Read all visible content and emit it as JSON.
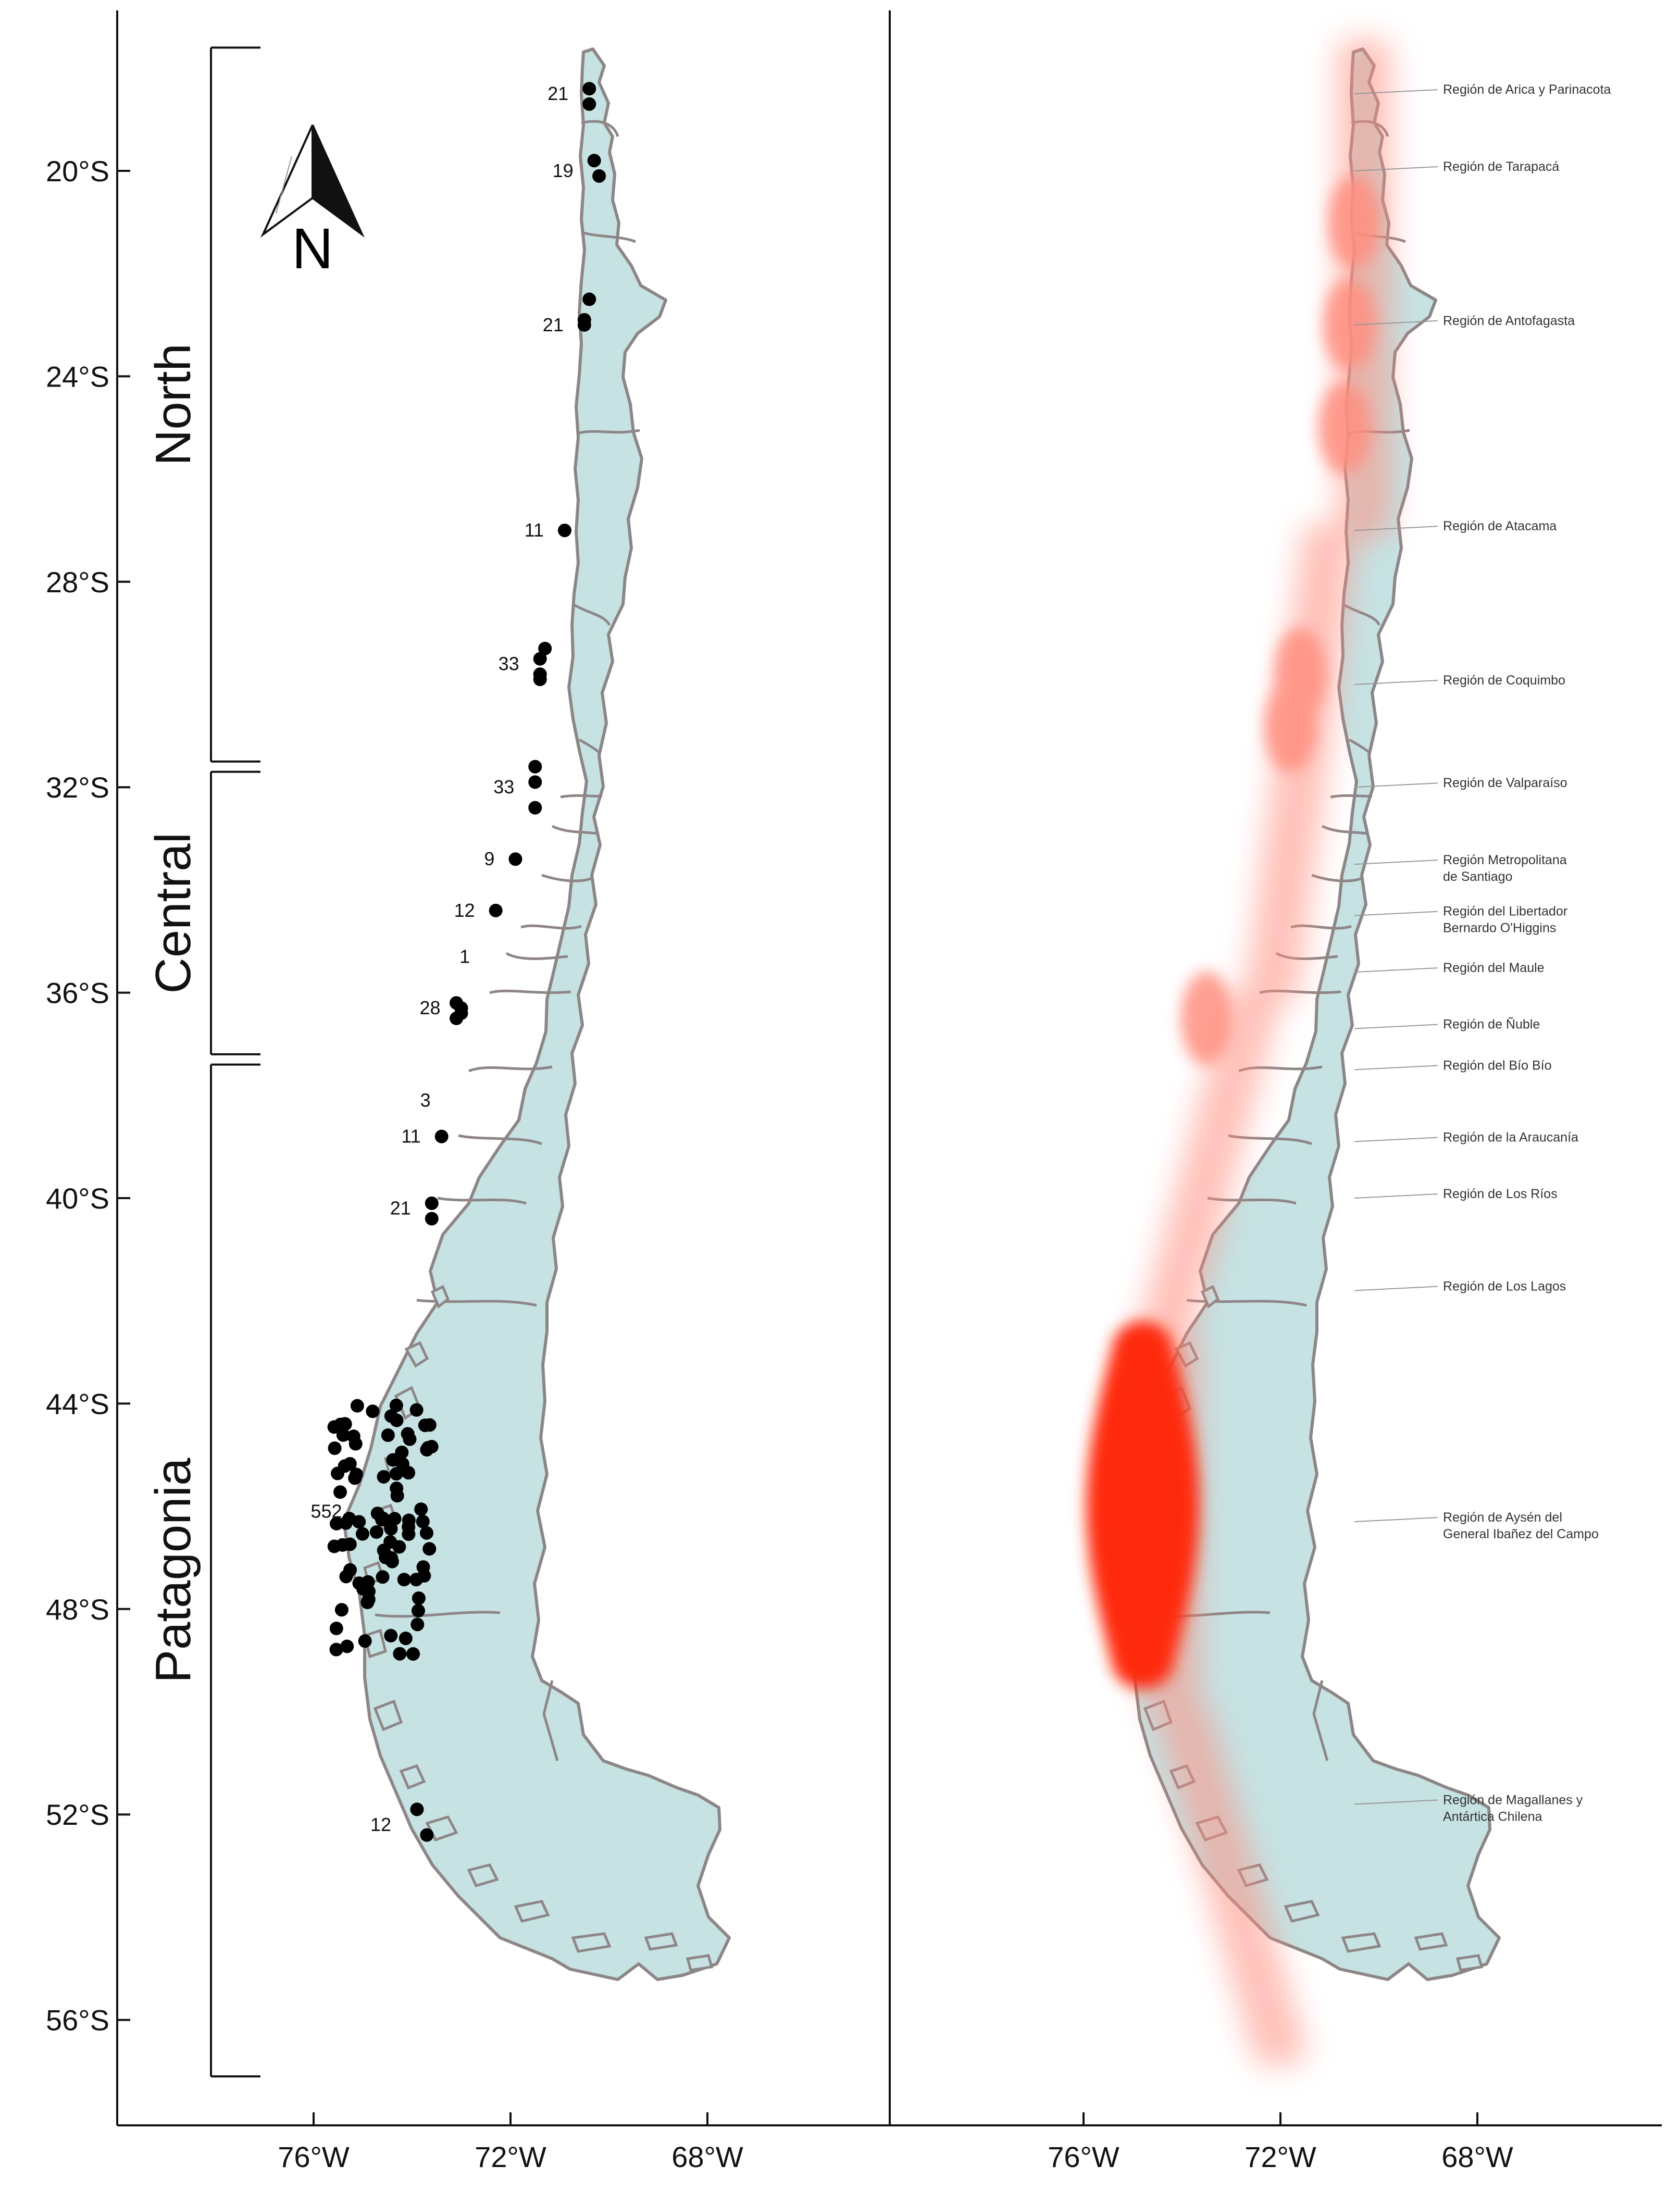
{
  "axes": {
    "latitude_ticks": [
      "20°S",
      "24°S",
      "28°S",
      "32°S",
      "36°S",
      "40°S",
      "44°S",
      "48°S",
      "52°S",
      "56°S"
    ],
    "longitude_ticks": [
      "76°W",
      "72°W",
      "68°W"
    ]
  },
  "north_arrow": {
    "label": "N",
    "icon": "north-arrow-icon"
  },
  "zones": [
    {
      "name": "North",
      "lat_range": [
        17.6,
        31.5
      ]
    },
    {
      "name": "Central",
      "lat_range": [
        31.7,
        37.2
      ]
    },
    {
      "name": "Patagonia",
      "lat_range": [
        37.4,
        57.1
      ]
    }
  ],
  "sample_sites": [
    {
      "label": "21",
      "lat": 18.5,
      "lon": 70.4,
      "dots": [
        [
          18.4,
          70.4
        ],
        [
          18.7,
          70.4
        ]
      ]
    },
    {
      "label": "19",
      "lat": 20.0,
      "lon": 70.3,
      "dots": [
        [
          19.8,
          70.3
        ],
        [
          20.1,
          70.2
        ]
      ]
    },
    {
      "label": "21",
      "lat": 23.0,
      "lon": 70.5,
      "dots": [
        [
          22.5,
          70.4
        ],
        [
          22.9,
          70.5
        ],
        [
          23.0,
          70.5
        ]
      ]
    },
    {
      "label": "11",
      "lat": 27.0,
      "lon": 70.9,
      "dots": [
        [
          27.0,
          70.9
        ]
      ]
    },
    {
      "label": "33",
      "lat": 29.6,
      "lon": 71.4,
      "dots": [
        [
          29.3,
          71.3
        ],
        [
          29.5,
          71.4
        ],
        [
          29.8,
          71.4
        ],
        [
          29.9,
          71.4
        ]
      ]
    },
    {
      "label": "33",
      "lat": 32.0,
      "lon": 71.5,
      "dots": [
        [
          31.6,
          71.5
        ],
        [
          31.9,
          71.5
        ],
        [
          32.4,
          71.5
        ]
      ]
    },
    {
      "label": "9",
      "lat": 33.4,
      "lon": 71.9,
      "dots": [
        [
          33.4,
          71.9
        ]
      ]
    },
    {
      "label": "12",
      "lat": 34.4,
      "lon": 72.3,
      "dots": [
        [
          34.4,
          72.3
        ]
      ]
    },
    {
      "label": "1",
      "lat": 35.3,
      "lon": 72.4,
      "dots": []
    },
    {
      "label": "28",
      "lat": 36.3,
      "lon": 73.0,
      "dots": [
        [
          36.2,
          73.1
        ],
        [
          36.3,
          73.0
        ],
        [
          36.4,
          73.0
        ],
        [
          36.5,
          73.1
        ]
      ]
    },
    {
      "label": "3",
      "lat": 38.1,
      "lon": 73.2,
      "dots": []
    },
    {
      "label": "11",
      "lat": 38.8,
      "lon": 73.4,
      "dots": [
        [
          38.8,
          73.4
        ]
      ]
    },
    {
      "label": "21",
      "lat": 40.2,
      "lon": 73.6,
      "dots": [
        [
          40.1,
          73.6
        ],
        [
          40.4,
          73.6
        ]
      ]
    },
    {
      "label": "552",
      "lat": 46.1,
      "lon": 75.0,
      "cluster": {
        "lat_range": [
          44.0,
          49.1
        ],
        "lon_range": [
          73.6,
          75.6
        ]
      }
    },
    {
      "label": "12",
      "lat": 52.2,
      "lon": 74.0,
      "dots": [
        [
          51.9,
          73.9
        ],
        [
          52.4,
          73.7
        ]
      ]
    }
  ],
  "regions": [
    {
      "name": "Región de Arica y Parinacota",
      "lat": 18.5
    },
    {
      "name": "Región de Tarapacá",
      "lat": 20.0
    },
    {
      "name": "Región de Antofagasta",
      "lat": 23.0
    },
    {
      "name": "Región de Atacama",
      "lat": 27.0
    },
    {
      "name": "Región de Coquimbo",
      "lat": 30.0
    },
    {
      "name": "Región de Valparaíso",
      "lat": 32.0
    },
    {
      "name": "Región Metropolitana",
      "name2": "de Santiago",
      "lat": 33.5
    },
    {
      "name": "Región del Libertador",
      "name2": "Bernardo O'Higgins",
      "lat": 34.5
    },
    {
      "name": "Región del Maule",
      "lat": 35.6
    },
    {
      "name": "Región de Ñuble",
      "lat": 36.7
    },
    {
      "name": "Región del Bío Bío",
      "lat": 37.5
    },
    {
      "name": "Región de la Araucanía",
      "lat": 38.9
    },
    {
      "name": "Región de Los Ríos",
      "lat": 40.0
    },
    {
      "name": "Región de Los Lagos",
      "lat": 41.8
    },
    {
      "name": "Región de Aysén del",
      "name2": "General Ibañez del Campo",
      "lat": 46.3
    },
    {
      "name": "Región de Magallanes y",
      "name2": "Antártica Chilena",
      "lat": 51.8
    }
  ],
  "colors": {
    "land": "#c6e2e3",
    "border": "#8e8686",
    "site_dot": "#000000",
    "density_hot": "#ff2a0a",
    "density_soft": "#ff8f80"
  }
}
